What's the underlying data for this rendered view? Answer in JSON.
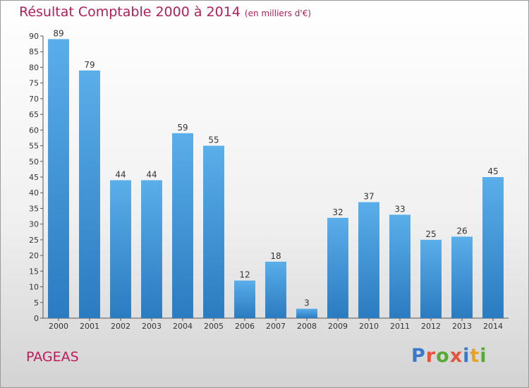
{
  "header": {
    "title": "Résultat Comptable 2000 à 2014",
    "subtitle": "(en milliers d'€)"
  },
  "footer": {
    "town": "PAGEAS",
    "logo": "Proxiti"
  },
  "colors": {
    "bar_top": "#5aaee9",
    "bar_bottom": "#2a7bc0",
    "title": "#b0205a",
    "logo_letters": [
      "#3a78c9",
      "#e6553a",
      "#59a937",
      "#e6553a",
      "#3a78c9",
      "#e8a320",
      "#59a937"
    ]
  },
  "chart_data": {
    "type": "bar",
    "categories": [
      "2000",
      "2001",
      "2002",
      "2003",
      "2004",
      "2005",
      "2006",
      "2007",
      "2008",
      "2009",
      "2010",
      "2011",
      "2012",
      "2013",
      "2014"
    ],
    "values": [
      89,
      79,
      44,
      44,
      59,
      55,
      12,
      18,
      3,
      32,
      37,
      33,
      25,
      26,
      45
    ],
    "title": "Résultat Comptable 2000 à 2014",
    "ylim": [
      0,
      90
    ],
    "yticks": [
      0,
      5,
      10,
      15,
      20,
      25,
      30,
      35,
      40,
      45,
      50,
      55,
      60,
      65,
      70,
      75,
      80,
      85,
      90
    ],
    "grid": false,
    "show_value_labels": true
  }
}
